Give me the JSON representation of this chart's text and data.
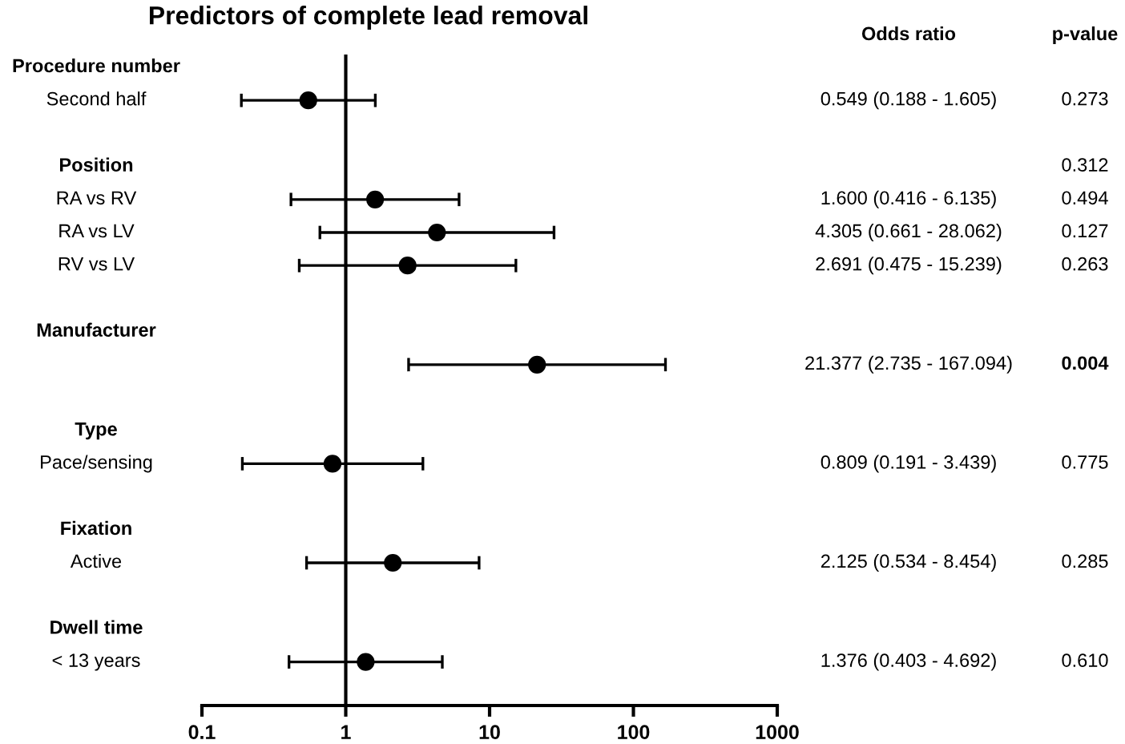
{
  "chart_data": {
    "type": "scatter",
    "title": "Predictors of complete lead removal",
    "categories": [
      "Procedure number",
      "Second half",
      "Position",
      "RA vs RV",
      "RA vs LV",
      "RV vs LV",
      "Manufacturer",
      null,
      "Type",
      "Pace/sensing",
      "Fixation",
      "Active",
      "Dwell time",
      "< 13 years"
    ],
    "series": [
      {
        "color": "#000000",
        "values": [
          null,
          0.549,
          null,
          1.6,
          4.305,
          2.691,
          null,
          21.377,
          null,
          0.809,
          null,
          2.125,
          null,
          1.376
        ],
        "errors": [
          null,
          [
            0.188,
            1.605
          ],
          null,
          [
            0.416,
            6.135
          ],
          [
            0.661,
            28.062
          ],
          [
            0.475,
            15.239
          ],
          null,
          [
            2.735,
            167.094
          ],
          null,
          [
            0.191,
            3.439
          ],
          null,
          [
            0.534,
            8.454
          ],
          null,
          [
            0.403,
            4.692
          ]
        ]
      }
    ],
    "orientation": "horizontal",
    "log": "x",
    "marker": "circle",
    "xlim": [
      0.1,
      1000
    ],
    "xticks": [
      0.1,
      1,
      10,
      100,
      1000
    ],
    "ref_lines": [
      {
        "axis": "x",
        "value": 1,
        "color": "#000000"
      }
    ],
    "annotations": [
      "Odds ratio",
      "p-value",
      "0.549 (0.188 - 1.605)",
      "0.273",
      "0.312",
      "1.600 (0.416 - 6.135)",
      "0.494",
      "4.305 (0.661 - 28.062)",
      "0.127",
      "2.691 (0.475 - 15.239)",
      "0.263",
      "21.377 (2.735 - 167.094)",
      "0.004",
      "0.809 (0.191 - 3.439)",
      "0.775",
      "2.125 (0.534 - 8.454)",
      "0.285",
      "1.376 (0.403 - 4.692)",
      "0.610"
    ],
    "grid": false,
    "legend": false
  }
}
